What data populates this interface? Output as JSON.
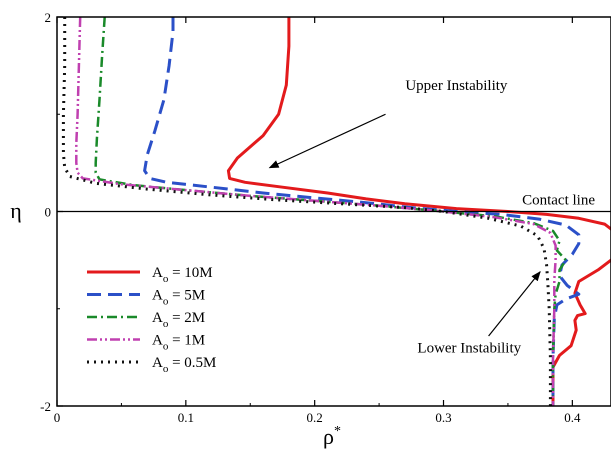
{
  "chart_data": {
    "type": "line",
    "xlabel": "ρ",
    "xlabel_superscript": "*",
    "ylabel": "η",
    "xlim": [
      0,
      0.43
    ],
    "ylim": [
      -2,
      2
    ],
    "x_ticks": [
      0,
      0.1,
      0.2,
      0.3,
      0.4
    ],
    "x_tick_labels": [
      "0",
      "0.1",
      "0.2",
      "0.3",
      "0.4"
    ],
    "y_ticks": [
      -2,
      0,
      2
    ],
    "y_tick_labels": [
      "-2",
      "0",
      "2"
    ],
    "reference_line": {
      "y": 0,
      "label": "Contact line"
    },
    "legend_position": "lower-left",
    "annotations": [
      {
        "text": "Upper Instability",
        "text_at": [
          0.31,
          1.25
        ],
        "arrow_from": [
          0.255,
          1.0
        ],
        "arrow_to": [
          0.165,
          0.45
        ]
      },
      {
        "text": "Lower Instability",
        "text_at": [
          0.32,
          -1.45
        ],
        "arrow_from": [
          0.335,
          -1.28
        ],
        "arrow_to": [
          0.375,
          -0.62
        ]
      }
    ],
    "series": [
      {
        "name_prefix": "A",
        "name_subscript": "o",
        "name_suffix": " = 10M",
        "color": "#e31a1c",
        "dash": "",
        "width": 3,
        "points": [
          [
            0.18,
            2.0
          ],
          [
            0.18,
            1.7
          ],
          [
            0.178,
            1.3
          ],
          [
            0.172,
            1.0
          ],
          [
            0.16,
            0.78
          ],
          [
            0.14,
            0.55
          ],
          [
            0.133,
            0.42
          ],
          [
            0.134,
            0.34
          ],
          [
            0.146,
            0.3
          ],
          [
            0.175,
            0.25
          ],
          [
            0.21,
            0.19
          ],
          [
            0.24,
            0.13
          ],
          [
            0.27,
            0.08
          ],
          [
            0.31,
            0.03
          ],
          [
            0.35,
            0.0
          ],
          [
            0.38,
            -0.03
          ],
          [
            0.405,
            -0.07
          ],
          [
            0.425,
            -0.13
          ],
          [
            0.435,
            -0.23
          ],
          [
            0.437,
            -0.34
          ],
          [
            0.432,
            -0.48
          ],
          [
            0.42,
            -0.6
          ],
          [
            0.405,
            -0.72
          ],
          [
            0.402,
            -0.84
          ],
          [
            0.406,
            -0.96
          ],
          [
            0.41,
            -1.05
          ],
          [
            0.404,
            -1.07
          ],
          [
            0.402,
            -1.12
          ],
          [
            0.403,
            -1.22
          ],
          [
            0.399,
            -1.38
          ],
          [
            0.39,
            -1.48
          ],
          [
            0.385,
            -1.6
          ],
          [
            0.385,
            -2.0
          ]
        ]
      },
      {
        "name_prefix": "A",
        "name_subscript": "o",
        "name_suffix": " = 5M",
        "color": "#2b50c8",
        "dash": "14,7",
        "width": 3,
        "points": [
          [
            0.09,
            2.0
          ],
          [
            0.09,
            1.85
          ],
          [
            0.087,
            1.5
          ],
          [
            0.083,
            1.15
          ],
          [
            0.076,
            0.83
          ],
          [
            0.07,
            0.58
          ],
          [
            0.068,
            0.42
          ],
          [
            0.072,
            0.34
          ],
          [
            0.085,
            0.3
          ],
          [
            0.12,
            0.25
          ],
          [
            0.16,
            0.19
          ],
          [
            0.2,
            0.14
          ],
          [
            0.24,
            0.09
          ],
          [
            0.275,
            0.04
          ],
          [
            0.31,
            0.0
          ],
          [
            0.345,
            -0.03
          ],
          [
            0.375,
            -0.08
          ],
          [
            0.395,
            -0.14
          ],
          [
            0.405,
            -0.24
          ],
          [
            0.405,
            -0.33
          ],
          [
            0.4,
            -0.44
          ],
          [
            0.392,
            -0.55
          ],
          [
            0.39,
            -0.66
          ],
          [
            0.396,
            -0.76
          ],
          [
            0.405,
            -0.85
          ],
          [
            0.395,
            -0.9
          ],
          [
            0.388,
            -0.96
          ],
          [
            0.386,
            -1.1
          ],
          [
            0.385,
            -1.5
          ],
          [
            0.385,
            -2.0
          ]
        ]
      },
      {
        "name_prefix": "A",
        "name_subscript": "o",
        "name_suffix": " = 2M",
        "color": "#1a8a2a",
        "dash": "10,4,2,4",
        "width": 2.5,
        "points": [
          [
            0.037,
            2.0
          ],
          [
            0.035,
            1.6
          ],
          [
            0.033,
            1.15
          ],
          [
            0.031,
            0.75
          ],
          [
            0.03,
            0.5
          ],
          [
            0.03,
            0.4
          ],
          [
            0.033,
            0.33
          ],
          [
            0.06,
            0.27
          ],
          [
            0.1,
            0.22
          ],
          [
            0.15,
            0.16
          ],
          [
            0.2,
            0.11
          ],
          [
            0.25,
            0.06
          ],
          [
            0.3,
            0.0
          ],
          [
            0.34,
            -0.05
          ],
          [
            0.37,
            -0.12
          ],
          [
            0.385,
            -0.2
          ],
          [
            0.39,
            -0.3
          ],
          [
            0.388,
            -0.4
          ],
          [
            0.395,
            -0.5
          ],
          [
            0.39,
            -0.6
          ],
          [
            0.39,
            -0.72
          ],
          [
            0.387,
            -0.85
          ],
          [
            0.386,
            -1.0
          ],
          [
            0.385,
            -1.5
          ],
          [
            0.385,
            -2.0
          ]
        ]
      },
      {
        "name_prefix": "A",
        "name_subscript": "o",
        "name_suffix": " = 1M",
        "color": "#c040b0",
        "dash": "10,3,2,3,2,3",
        "width": 2.5,
        "points": [
          [
            0.018,
            2.0
          ],
          [
            0.017,
            1.5
          ],
          [
            0.016,
            1.0
          ],
          [
            0.015,
            0.7
          ],
          [
            0.015,
            0.5
          ],
          [
            0.016,
            0.4
          ],
          [
            0.02,
            0.34
          ],
          [
            0.05,
            0.28
          ],
          [
            0.1,
            0.22
          ],
          [
            0.15,
            0.16
          ],
          [
            0.2,
            0.11
          ],
          [
            0.25,
            0.06
          ],
          [
            0.3,
            0.0
          ],
          [
            0.34,
            -0.06
          ],
          [
            0.37,
            -0.13
          ],
          [
            0.383,
            -0.22
          ],
          [
            0.387,
            -0.35
          ],
          [
            0.387,
            -0.5
          ],
          [
            0.386,
            -0.7
          ],
          [
            0.386,
            -1.0
          ],
          [
            0.385,
            -1.5
          ],
          [
            0.385,
            -2.0
          ]
        ]
      },
      {
        "name_prefix": "A",
        "name_subscript": "o",
        "name_suffix": " = 0.5M",
        "color": "#111111",
        "dash": "2,5",
        "width": 3,
        "points": [
          [
            0.006,
            2.0
          ],
          [
            0.006,
            1.5
          ],
          [
            0.005,
            1.0
          ],
          [
            0.005,
            0.6
          ],
          [
            0.006,
            0.45
          ],
          [
            0.01,
            0.36
          ],
          [
            0.03,
            0.29
          ],
          [
            0.07,
            0.23
          ],
          [
            0.12,
            0.17
          ],
          [
            0.17,
            0.12
          ],
          [
            0.22,
            0.08
          ],
          [
            0.27,
            0.04
          ],
          [
            0.3,
            0.0
          ],
          [
            0.335,
            -0.07
          ],
          [
            0.36,
            -0.15
          ],
          [
            0.373,
            -0.25
          ],
          [
            0.378,
            -0.38
          ],
          [
            0.38,
            -0.55
          ],
          [
            0.381,
            -0.75
          ],
          [
            0.382,
            -1.0
          ],
          [
            0.383,
            -1.5
          ],
          [
            0.383,
            -2.0
          ]
        ]
      }
    ]
  }
}
